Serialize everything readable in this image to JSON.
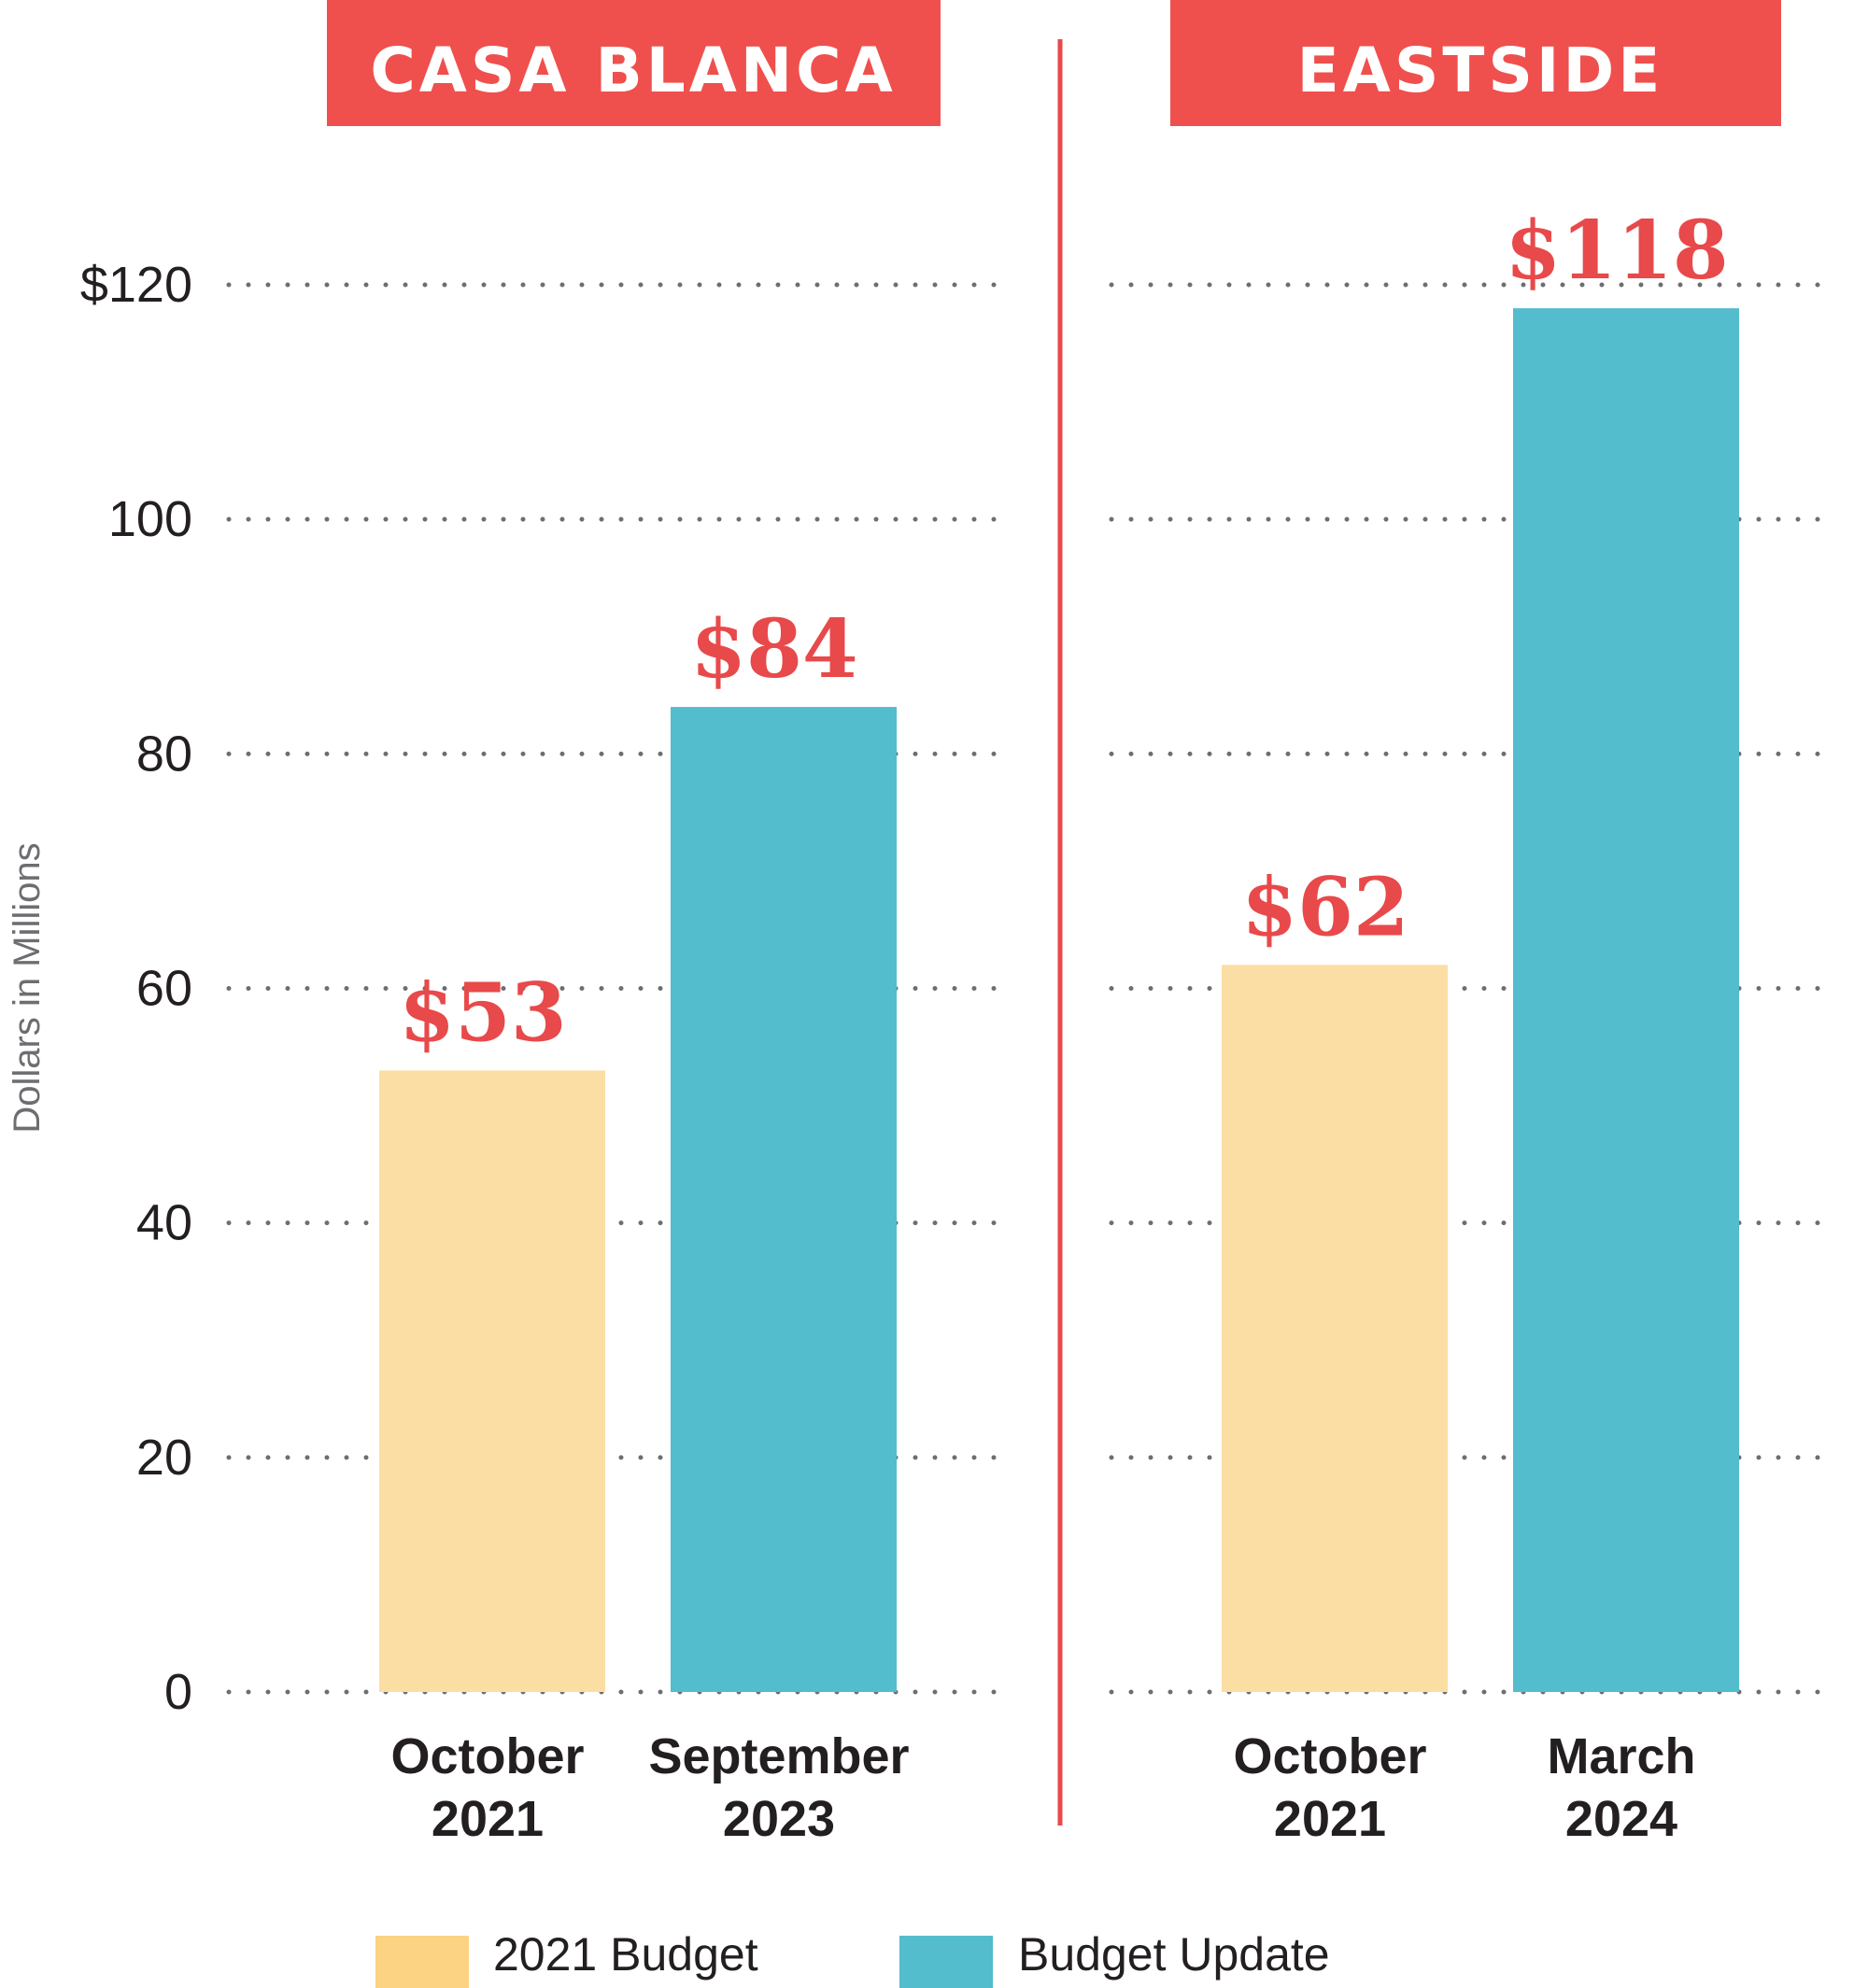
{
  "chart_data": {
    "type": "bar",
    "ylabel": "Dollars in Millions",
    "ylim": [
      0,
      120
    ],
    "y_ticks": [
      {
        "value": 120,
        "label": "$120"
      },
      {
        "value": 100,
        "label": "100"
      },
      {
        "value": 80,
        "label": "80"
      },
      {
        "value": 60,
        "label": "60"
      },
      {
        "value": 40,
        "label": "40"
      },
      {
        "value": 20,
        "label": "20"
      },
      {
        "value": 0,
        "label": "0"
      }
    ],
    "grid": "dotted horizontal",
    "panels": [
      {
        "title": "CASA BLANCA",
        "bars": [
          {
            "series": "2021 Budget",
            "category": [
              "October",
              "2021"
            ],
            "value": 53,
            "label": "$53"
          },
          {
            "series": "Budget Update",
            "category": [
              "September",
              "2023"
            ],
            "value": 84,
            "label": "$84"
          }
        ]
      },
      {
        "title": "EASTSIDE",
        "bars": [
          {
            "series": "2021 Budget",
            "category": [
              "October",
              "2021"
            ],
            "value": 62,
            "label": "$62"
          },
          {
            "series": "Budget Update",
            "category": [
              "March",
              "2024"
            ],
            "value": 118,
            "label": "$118"
          }
        ]
      }
    ],
    "legend": {
      "position": "bottom",
      "items": [
        {
          "name": "2021 Budget",
          "color": "#fbdea3"
        },
        {
          "name": "Budget Update",
          "color": "#53bccd"
        }
      ]
    }
  },
  "colors": {
    "banner": "#ef504d",
    "divider": "#e8494a",
    "value_label": "#e8494a",
    "bar_2021": "#fbdea3",
    "bar_update": "#53bccd",
    "legend_2021": "#fbd383",
    "grid_dots": "#6d6e71",
    "text": "#231f20",
    "ylabel": "#6d6e71"
  }
}
